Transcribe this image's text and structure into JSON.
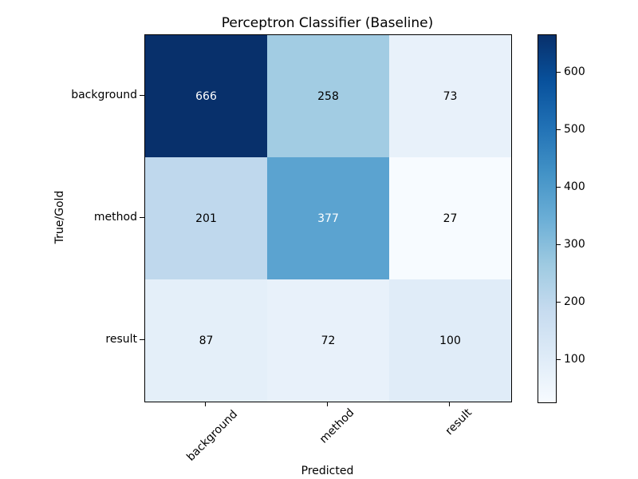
{
  "figure": {
    "title": "Perceptron Classifier (Baseline)",
    "xlabel": "Predicted",
    "ylabel": "True/Gold"
  },
  "chart_data": {
    "type": "heatmap",
    "title": "Perceptron Classifier (Baseline)",
    "xlabel": "Predicted",
    "ylabel": "True/Gold",
    "x_categories": [
      "background",
      "method",
      "result"
    ],
    "y_categories": [
      "background",
      "method",
      "result"
    ],
    "matrix": [
      [
        666,
        258,
        73
      ],
      [
        201,
        377,
        27
      ],
      [
        87,
        72,
        100
      ]
    ],
    "colormap": "Blues",
    "vmin": 27,
    "vmax": 666,
    "grid": false,
    "legend_position": "right-colorbar",
    "colorbar_ticks": [
      100,
      200,
      300,
      400,
      500,
      600
    ],
    "cells": [
      {
        "value": 666,
        "bg": "#08306b",
        "fg": "#ffffff"
      },
      {
        "value": 258,
        "bg": "#a2cce3",
        "fg": "#000000"
      },
      {
        "value": 73,
        "bg": "#e8f1fa",
        "fg": "#000000"
      },
      {
        "value": 201,
        "bg": "#bfd8ed",
        "fg": "#000000"
      },
      {
        "value": 377,
        "bg": "#5ba3d0",
        "fg": "#ffffff"
      },
      {
        "value": 27,
        "bg": "#f7fbff",
        "fg": "#000000"
      },
      {
        "value": 87,
        "bg": "#e4eff9",
        "fg": "#000000"
      },
      {
        "value": 72,
        "bg": "#e8f1fa",
        "fg": "#000000"
      },
      {
        "value": 100,
        "bg": "#e0ecf8",
        "fg": "#000000"
      }
    ]
  }
}
